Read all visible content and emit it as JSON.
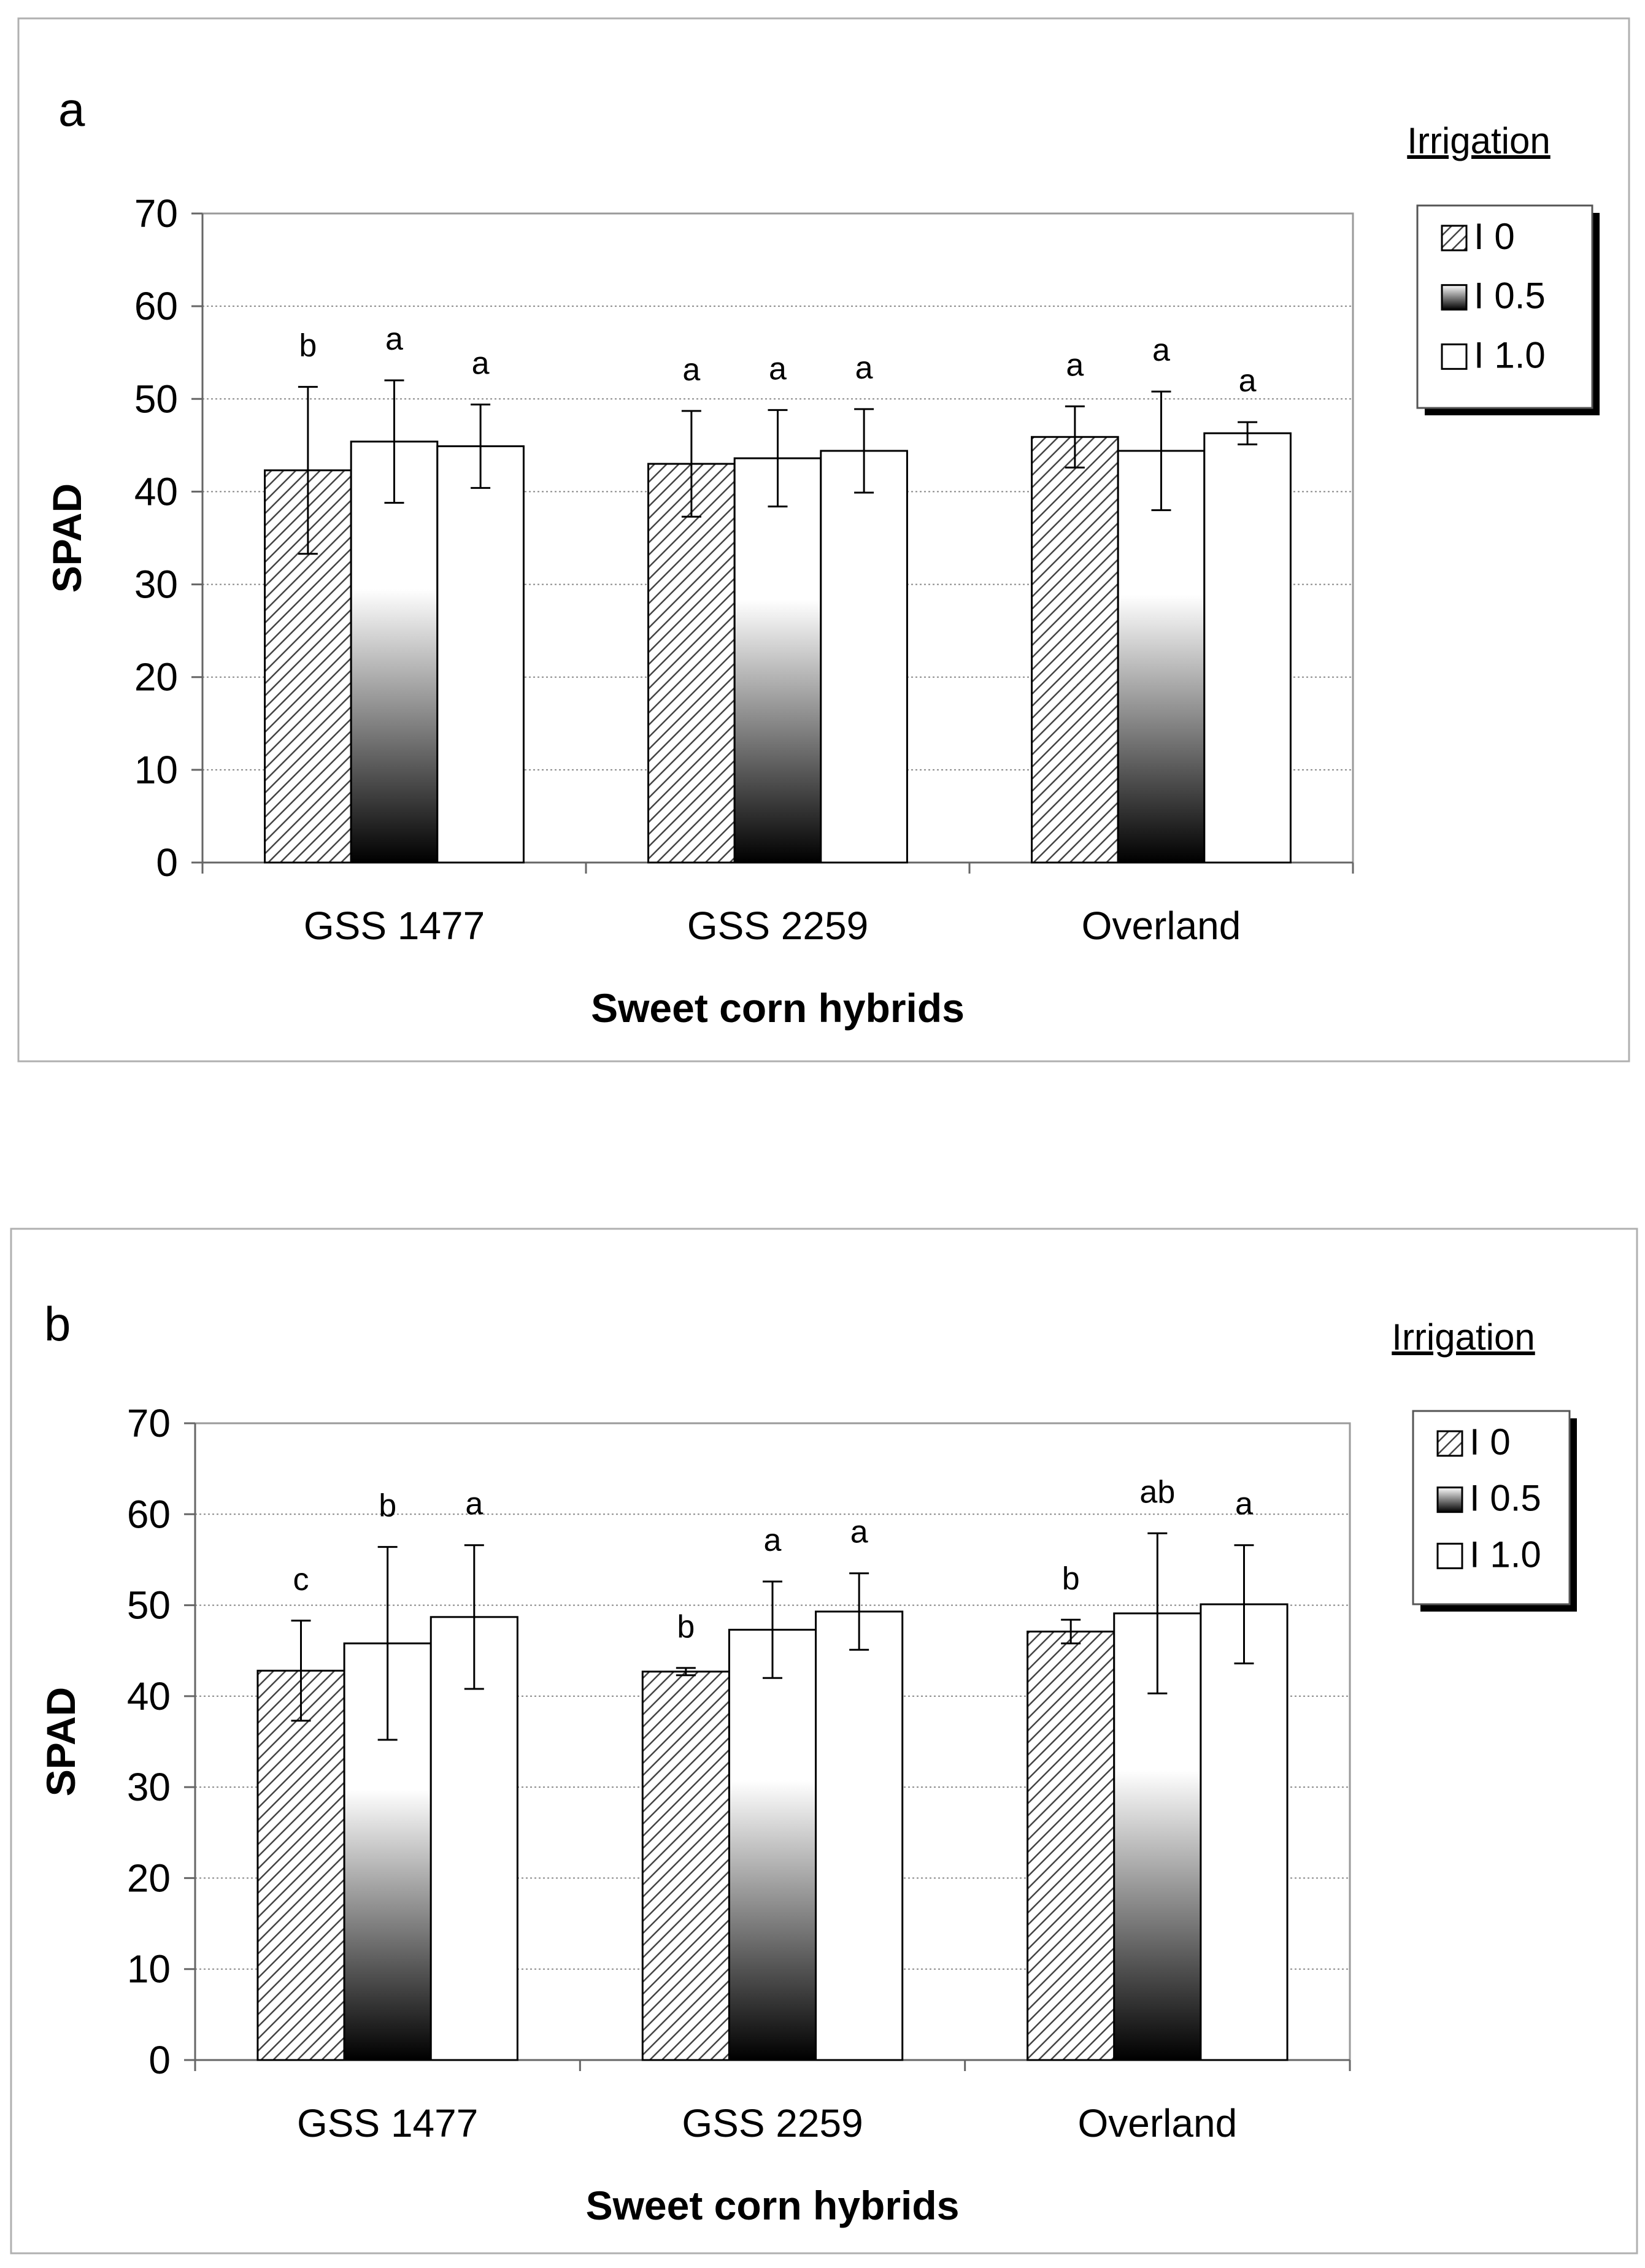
{
  "chart_data": [
    {
      "type": "bar",
      "panel": "a",
      "title": "",
      "categories": [
        "GSS 1477",
        "GSS 2259",
        "Overland"
      ],
      "xlabel": "Sweet corn hybrids",
      "ylabel": "SPAD",
      "ylim": [
        0,
        70
      ],
      "yticks": [
        "0",
        "10",
        "20",
        "30",
        "40",
        "50",
        "60",
        "70"
      ],
      "grid": true,
      "legend": {
        "title": "Irrigation",
        "position": "right"
      },
      "series": [
        {
          "name": "I 0",
          "values": [
            42.3,
            43.0,
            45.9
          ],
          "errors": [
            9.0,
            5.7,
            3.3
          ],
          "letters": [
            "b",
            "a",
            "a"
          ]
        },
        {
          "name": "I 0.5",
          "values": [
            45.4,
            43.6,
            44.4
          ],
          "errors": [
            6.6,
            5.2,
            6.4
          ],
          "letters": [
            "a",
            "a",
            "a"
          ]
        },
        {
          "name": "I 1.0",
          "values": [
            44.9,
            44.4,
            46.3
          ],
          "errors": [
            4.5,
            4.5,
            1.2
          ],
          "letters": [
            "a",
            "a",
            "a"
          ]
        }
      ]
    },
    {
      "type": "bar",
      "panel": "b",
      "title": "",
      "categories": [
        "GSS 1477",
        "GSS 2259",
        "Overland"
      ],
      "xlabel": "Sweet corn hybrids",
      "ylabel": "SPAD",
      "ylim": [
        0,
        70
      ],
      "yticks": [
        "0",
        "10",
        "20",
        "30",
        "40",
        "50",
        "60",
        "70"
      ],
      "grid": true,
      "legend": {
        "title": "Irrigation",
        "position": "right"
      },
      "series": [
        {
          "name": "I 0",
          "values": [
            42.8,
            42.7,
            47.1
          ],
          "errors": [
            5.5,
            0.4,
            1.3
          ],
          "letters": [
            "c",
            "b",
            "b"
          ]
        },
        {
          "name": "I 0.5",
          "values": [
            45.8,
            47.3,
            49.1
          ],
          "errors": [
            10.6,
            5.3,
            8.8
          ],
          "letters": [
            "b",
            "a",
            "ab"
          ]
        },
        {
          "name": "I 1.0",
          "values": [
            48.7,
            49.3,
            50.1
          ],
          "errors": [
            7.9,
            4.2,
            6.5
          ],
          "letters": [
            "a",
            "a",
            "a"
          ]
        }
      ]
    }
  ]
}
